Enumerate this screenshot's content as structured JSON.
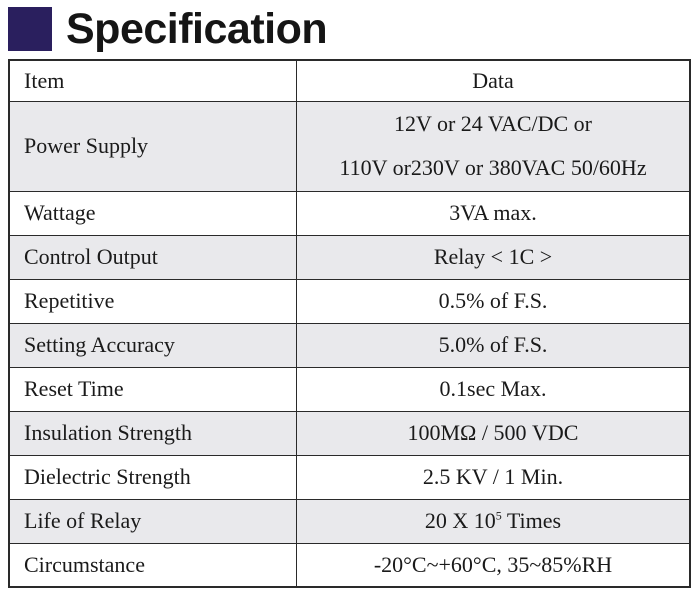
{
  "header": {
    "title": "Specification"
  },
  "table": {
    "columns": [
      "Item",
      "Data"
    ],
    "rows": [
      {
        "item": "Power Supply",
        "data_line1": "12V or 24 VAC/DC or",
        "data_line2": "110V or230V or 380VAC 50/60Hz"
      },
      {
        "item": "Wattage",
        "data": "3VA max."
      },
      {
        "item": "Control Output",
        "data": "Relay < 1C >"
      },
      {
        "item": "Repetitive",
        "data": "0.5% of F.S."
      },
      {
        "item": "Setting Accuracy",
        "data": "5.0% of F.S."
      },
      {
        "item": "Reset Time",
        "data": "0.1sec Max."
      },
      {
        "item": "Insulation Strength",
        "data": "100MΩ / 500 VDC"
      },
      {
        "item": "Dielectric Strength",
        "data": "2.5 KV / 1 Min."
      },
      {
        "item": "Life of Relay",
        "data_prefix": "20 X 10",
        "data_sup": "5",
        "data_suffix": " Times"
      },
      {
        "item": "Circumstance",
        "data": "-20°C~+60°C, 35~85%RH"
      }
    ]
  },
  "colors": {
    "accent_square": "#2a1f5e",
    "row_shade": "#e9e9ec",
    "border": "#2a2a2a"
  }
}
